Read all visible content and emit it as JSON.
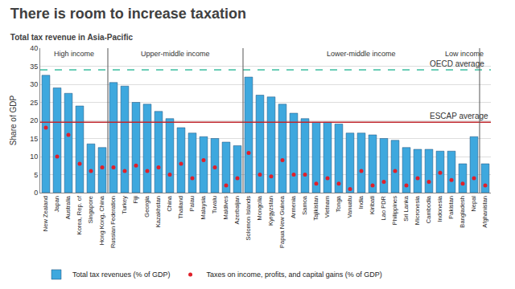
{
  "chart_data": {
    "type": "bar",
    "title": "There is room to increase taxation",
    "subtitle": "Total tax revenue in Asia-Pacific",
    "y_label": "Share of GDP",
    "categories": [
      "New Zealand",
      "Japan",
      "Australia",
      "Korea, Rep. of",
      "Singapore",
      "Hong Kong, China",
      "Russian Federation",
      "Turkey",
      "Fiji",
      "Georgia",
      "Kazakhstan",
      "China",
      "Thailand",
      "Palau",
      "Malaysia",
      "Tuvalu",
      "Maldives",
      "Azerbaijan",
      "Solomon Islands",
      "Mongolia",
      "Kyrgyzstan",
      "Papua New Guinea",
      "Armenia",
      "Samoa",
      "Tajikistan",
      "Vietnam",
      "Tonga",
      "Vanuatu",
      "India",
      "Kiribati",
      "Lao PDR",
      "Philippines",
      "Sri Lanka",
      "Micronesia",
      "Cambodia",
      "Indonesia",
      "Pakistan",
      "Bangladesh",
      "Nepal",
      "Afghanistan"
    ],
    "series": [
      {
        "name": "Total tax revenues (% of GDP)",
        "type": "bar",
        "color": "#3ea8de",
        "values": [
          32.5,
          29,
          27.5,
          24,
          13.5,
          12.5,
          30.5,
          29.5,
          25,
          24.5,
          22.5,
          20.5,
          18,
          16.5,
          15.5,
          15,
          14,
          13,
          32,
          27,
          26.5,
          24.5,
          22,
          20.5,
          19.5,
          19.5,
          19,
          16.5,
          16.5,
          16,
          15,
          14.5,
          12.5,
          12,
          12,
          11.5,
          11.5,
          8,
          15.5,
          8
        ]
      },
      {
        "name": "Taxes on income, profits, and capital gains (% of GDP)",
        "type": "scatter",
        "marker": "circle",
        "color": "#e0202a",
        "values": [
          18,
          10,
          16,
          8,
          6,
          7,
          7,
          6,
          7.5,
          6,
          7,
          5,
          8,
          4,
          9,
          7,
          2,
          4,
          11,
          5,
          4.5,
          9,
          5,
          5,
          2.5,
          4,
          2.5,
          1,
          6,
          2,
          3,
          6,
          2,
          4,
          3,
          5.5,
          3.5,
          2.5,
          4,
          2
        ]
      }
    ],
    "ylim": [
      0,
      40
    ],
    "yticks": [
      0,
      5,
      10,
      15,
      20,
      25,
      30,
      35,
      40
    ],
    "grid": true,
    "legend": "bottom",
    "reference_lines": [
      {
        "label": "OECD average",
        "value": 34,
        "color": "#3dbfa0",
        "line_style": "dashed"
      },
      {
        "label": "ESCAP average",
        "value": 19.5,
        "color": "#c0272d",
        "line_style": "solid"
      }
    ],
    "groups": [
      {
        "label": "High income",
        "first": "New Zealand",
        "last": "Hong Kong, China"
      },
      {
        "label": "Upper-middle income",
        "first": "Russian Federation",
        "last": "Azerbaijan"
      },
      {
        "label": "Lower-middle income",
        "first": "Solomon Islands",
        "last": "Nepal"
      },
      {
        "label": "Low income",
        "first": "Afghanistan",
        "last": "Afghanistan"
      }
    ]
  }
}
